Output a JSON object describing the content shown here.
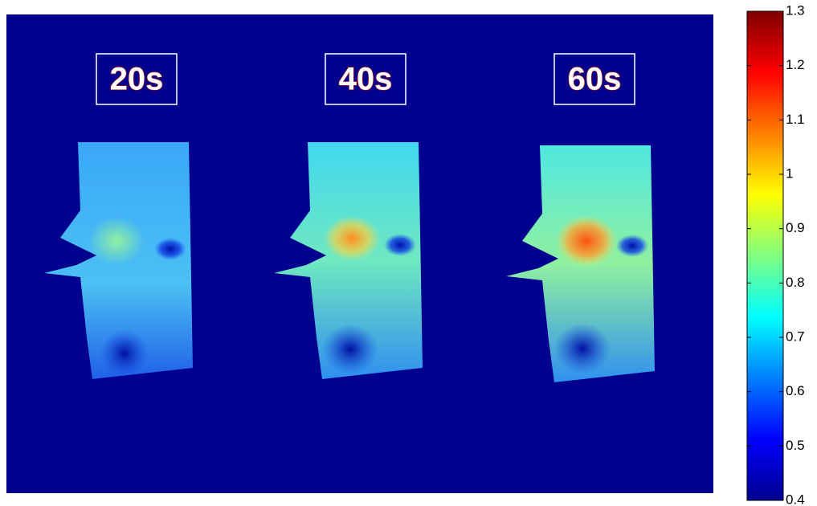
{
  "chart_data": {
    "type": "heatmap",
    "labels": [
      "20s",
      "40s",
      "60s"
    ],
    "colorbar": {
      "ylim": [
        0.4,
        1.3
      ],
      "yticks": [
        0.4,
        0.5,
        0.6,
        0.7,
        0.8,
        0.9,
        1,
        1.1,
        1.2,
        1.3
      ]
    }
  }
}
